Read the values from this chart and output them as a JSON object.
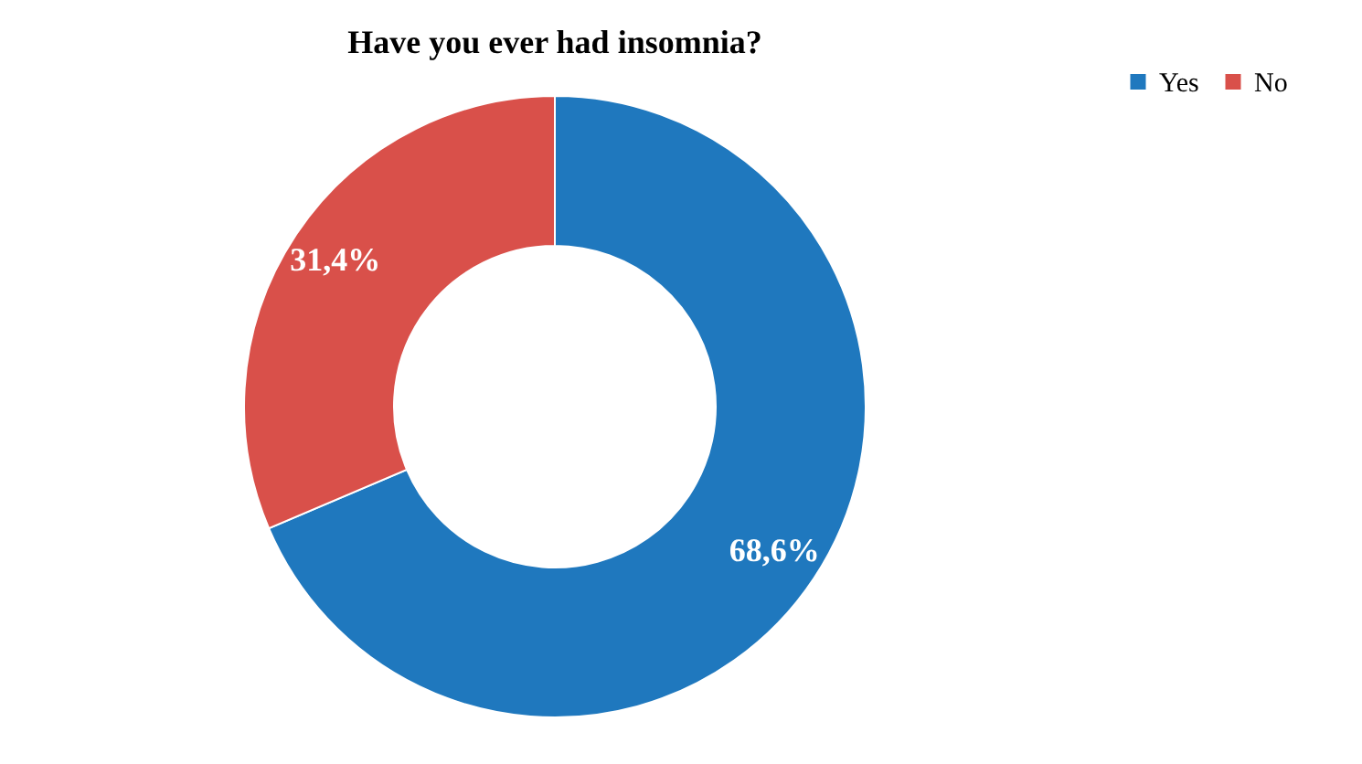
{
  "chart_data": {
    "type": "donut",
    "title": "Have you ever had insomnia?",
    "categories": [
      "Yes",
      "No"
    ],
    "values": [
      68.6,
      31.4
    ],
    "colors": [
      "#1f78be",
      "#d9504a"
    ],
    "value_labels": [
      "68,6%",
      "31,4%"
    ],
    "legend": "right"
  }
}
